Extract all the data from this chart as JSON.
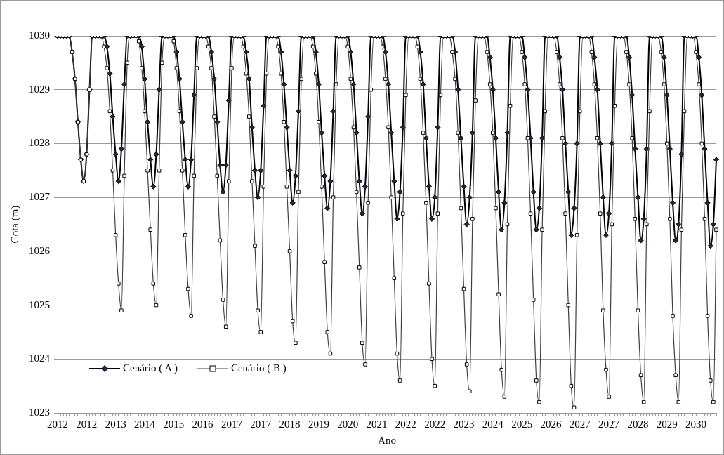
{
  "chart_data": {
    "type": "line",
    "xlabel": "Ano",
    "ylabel": "Cota (m)",
    "categories": [
      "2012",
      null,
      null,
      null,
      null,
      null,
      null,
      null,
      null,
      null,
      "2012",
      null,
      null,
      null,
      null,
      null,
      null,
      null,
      null,
      null,
      "2013",
      null,
      null,
      null,
      null,
      null,
      null,
      null,
      null,
      null,
      "2014",
      null,
      null,
      null,
      null,
      null,
      null,
      null,
      null,
      null,
      "2015",
      null,
      null,
      null,
      null,
      null,
      null,
      null,
      null,
      null,
      "2016",
      null,
      null,
      null,
      null,
      null,
      null,
      null,
      null,
      null,
      "2017",
      null,
      null,
      null,
      null,
      null,
      null,
      null,
      null,
      null,
      "2017",
      null,
      null,
      null,
      null,
      null,
      null,
      null,
      null,
      null,
      "2018",
      null,
      null,
      null,
      null,
      null,
      null,
      null,
      null,
      null,
      "2019",
      null,
      null,
      null,
      null,
      null,
      null,
      null,
      null,
      null,
      "2020",
      null,
      null,
      null,
      null,
      null,
      null,
      null,
      null,
      null,
      "2021",
      null,
      null,
      null,
      null,
      null,
      null,
      null,
      null,
      null,
      "2022",
      null,
      null,
      null,
      null,
      null,
      null,
      null,
      null,
      null,
      "2022",
      null,
      null,
      null,
      null,
      null,
      null,
      null,
      null,
      null,
      "2023",
      null,
      null,
      null,
      null,
      null,
      null,
      null,
      null,
      null,
      "2024",
      null,
      null,
      null,
      null,
      null,
      null,
      null,
      null,
      null,
      "2025",
      null,
      null,
      null,
      null,
      null,
      null,
      null,
      null,
      null,
      "2026",
      null,
      null,
      null,
      null,
      null,
      null,
      null,
      null,
      null,
      "2027",
      null,
      null,
      null,
      null,
      null,
      null,
      null,
      null,
      null,
      "2027",
      null,
      null,
      null,
      null,
      null,
      null,
      null,
      null,
      null,
      "2028",
      null,
      null,
      null,
      null,
      null,
      null,
      null,
      null,
      null,
      "2029",
      null,
      null,
      null,
      null,
      null,
      null,
      null,
      null,
      null,
      "2030",
      null,
      null,
      null,
      null,
      null,
      null,
      null
    ],
    "series": [
      {
        "name": "Cenário ( A )",
        "color": "#000000",
        "marker": "diamond",
        "values": [
          1030,
          1030,
          1030,
          1030,
          1030,
          1029.7,
          1029.2,
          1028.4,
          1027.7,
          1027.3,
          1027.8,
          1029.0,
          1030,
          1030,
          1030,
          1030,
          1030,
          1029.8,
          1029.3,
          1028.5,
          1027.8,
          1027.3,
          1027.9,
          1029.1,
          1030,
          1030,
          1030,
          1030,
          1030,
          1029.8,
          1029.2,
          1028.4,
          1027.7,
          1027.2,
          1027.8,
          1029.0,
          1030,
          1030,
          1030,
          1030,
          1030,
          1029.7,
          1029.2,
          1028.4,
          1027.7,
          1027.2,
          1027.7,
          1028.9,
          1030,
          1030,
          1030,
          1030,
          1030,
          1029.7,
          1029.2,
          1028.4,
          1027.6,
          1027.1,
          1027.6,
          1028.8,
          1030,
          1030,
          1030,
          1030,
          1030,
          1029.7,
          1029.2,
          1028.3,
          1027.5,
          1027.0,
          1027.5,
          1028.7,
          1030,
          1030,
          1030,
          1030,
          1030,
          1029.7,
          1029.1,
          1028.3,
          1027.5,
          1026.9,
          1027.4,
          1028.6,
          1030,
          1030,
          1030,
          1030,
          1030,
          1029.7,
          1029.1,
          1028.2,
          1027.4,
          1026.8,
          1027.3,
          1028.6,
          1030,
          1030,
          1030,
          1030,
          1030,
          1029.7,
          1029.1,
          1028.2,
          1027.3,
          1026.7,
          1027.2,
          1028.5,
          1030,
          1030,
          1030,
          1030,
          1030,
          1029.7,
          1029.1,
          1028.2,
          1027.3,
          1026.6,
          1027.1,
          1028.3,
          1030,
          1030,
          1030,
          1030,
          1030,
          1029.7,
          1029.1,
          1028.1,
          1027.2,
          1026.6,
          1027.0,
          1028.3,
          1030,
          1030,
          1030,
          1030,
          1030,
          1029.7,
          1029.0,
          1028.1,
          1027.2,
          1026.5,
          1027.0,
          1028.2,
          1030,
          1030,
          1030,
          1030,
          1030,
          1029.6,
          1029.0,
          1028.1,
          1027.1,
          1026.4,
          1026.9,
          1028.2,
          1030,
          1030,
          1030,
          1030,
          1030,
          1029.6,
          1029.0,
          1028.1,
          1027.1,
          1026.4,
          1026.8,
          1028.1,
          1030,
          1030,
          1030,
          1030,
          1030,
          1029.6,
          1029.0,
          1028.0,
          1027.1,
          1026.3,
          1026.8,
          1028.0,
          1030,
          1030,
          1030,
          1030,
          1030,
          1029.6,
          1029.0,
          1028.0,
          1027.0,
          1026.3,
          1026.7,
          1028.0,
          1030,
          1030,
          1030,
          1030,
          1030,
          1029.6,
          1028.9,
          1027.9,
          1027.0,
          1026.2,
          1026.6,
          1027.9,
          1030,
          1030,
          1030,
          1030,
          1030,
          1029.6,
          1028.9,
          1027.9,
          1026.9,
          1026.2,
          1026.5,
          1027.8,
          1030,
          1030,
          1030,
          1030,
          1030,
          1029.6,
          1028.9,
          1027.9,
          1026.9,
          1026.1,
          1026.5,
          1027.7
        ]
      },
      {
        "name": "Cenário ( B )",
        "color": "#404040",
        "marker": "square",
        "values": [
          1030,
          1030,
          1030,
          1030,
          1030,
          1029.7,
          1029.2,
          1028.4,
          1027.7,
          1027.3,
          1027.8,
          1029.0,
          1030,
          1030,
          1030,
          1030,
          1029.8,
          1029.4,
          1028.6,
          1027.5,
          1026.3,
          1025.4,
          1024.9,
          1027.4,
          1029.5,
          1030,
          1030,
          1030,
          1029.9,
          1029.4,
          1028.6,
          1027.5,
          1026.4,
          1025.4,
          1025.0,
          1027.5,
          1029.5,
          1030,
          1030,
          1030,
          1029.9,
          1029.4,
          1028.6,
          1027.5,
          1026.3,
          1025.3,
          1024.8,
          1027.4,
          1029.4,
          1030,
          1030,
          1030,
          1029.8,
          1029.4,
          1028.5,
          1027.4,
          1026.2,
          1025.1,
          1024.6,
          1027.3,
          1029.4,
          1030,
          1030,
          1030,
          1029.8,
          1029.3,
          1028.5,
          1027.3,
          1026.1,
          1024.9,
          1024.5,
          1027.2,
          1029.3,
          1030,
          1030,
          1030,
          1029.8,
          1029.3,
          1028.4,
          1027.2,
          1026.0,
          1024.7,
          1024.3,
          1027.1,
          1029.2,
          1030,
          1030,
          1030,
          1029.8,
          1029.3,
          1028.4,
          1027.2,
          1025.8,
          1024.5,
          1024.1,
          1027.0,
          1029.1,
          1030,
          1030,
          1030,
          1029.8,
          1029.2,
          1028.3,
          1027.1,
          1025.7,
          1024.3,
          1023.9,
          1026.9,
          1029.0,
          1030,
          1030,
          1030,
          1029.8,
          1029.2,
          1028.3,
          1027.0,
          1025.5,
          1024.1,
          1023.6,
          1026.7,
          1028.9,
          1030,
          1030,
          1030,
          1029.8,
          1029.2,
          1028.2,
          1026.9,
          1025.4,
          1024.0,
          1023.5,
          1026.7,
          1028.9,
          1030,
          1030,
          1030,
          1029.7,
          1029.2,
          1028.2,
          1026.8,
          1025.3,
          1023.9,
          1023.4,
          1026.6,
          1028.8,
          1030,
          1030,
          1030,
          1029.7,
          1029.1,
          1028.2,
          1026.8,
          1025.2,
          1023.8,
          1023.3,
          1026.5,
          1028.7,
          1030,
          1030,
          1030,
          1029.7,
          1029.1,
          1028.1,
          1026.7,
          1025.1,
          1023.6,
          1023.2,
          1026.4,
          1028.6,
          1030,
          1030,
          1030,
          1029.7,
          1029.1,
          1028.1,
          1026.7,
          1025.0,
          1023.5,
          1023.1,
          1026.3,
          1028.6,
          1030,
          1030,
          1030,
          1029.7,
          1029.1,
          1028.1,
          1026.7,
          1024.9,
          1023.8,
          1023.3,
          1026.5,
          1028.7,
          1030,
          1030,
          1030,
          1029.7,
          1029.1,
          1028.1,
          1026.6,
          1024.9,
          1023.7,
          1023.2,
          1026.5,
          1028.6,
          1030,
          1030,
          1030,
          1029.7,
          1029.1,
          1028.0,
          1026.6,
          1024.8,
          1023.7,
          1023.2,
          1026.4,
          1028.6,
          1030,
          1030,
          1030,
          1029.7,
          1029.1,
          1028.0,
          1026.6,
          1024.8,
          1023.6,
          1023.2,
          1026.4
        ]
      }
    ],
    "ylim": [
      1023,
      1030
    ],
    "yticks": [
      1023,
      1024,
      1025,
      1026,
      1027,
      1028,
      1029,
      1030
    ],
    "grid": "y",
    "legend": "bottom left"
  }
}
